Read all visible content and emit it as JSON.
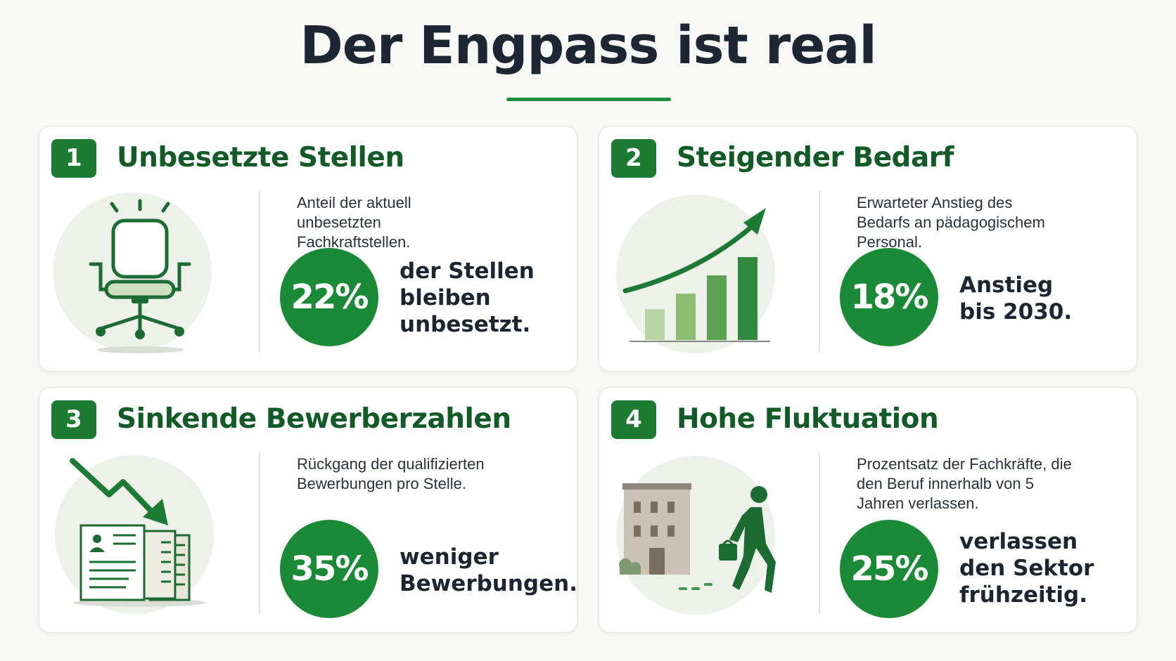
{
  "page": {
    "title": "Der Engpass ist real"
  },
  "colors": {
    "accent": "#1b8a37",
    "title_green": "#125a27",
    "badge": "#1d7a32",
    "circle_bg": "#eef1ea"
  },
  "cards": [
    {
      "number": "1",
      "title": "Unbesetzte Stellen",
      "icon": "office-chair-icon",
      "description": "Anteil der aktuell unbesetzten Fachkraftstellen.",
      "stat": "22%",
      "caption": "der Stellen bleiben unbesetzt."
    },
    {
      "number": "2",
      "title": "Steigender Bedarf",
      "icon": "rising-bar-chart-icon",
      "description": "Erwarteter Anstieg des Bedarfs an pädagogischem Personal.",
      "stat": "18%",
      "caption": "Anstieg bis 2030."
    },
    {
      "number": "3",
      "title": "Sinkende Bewerberzahlen",
      "icon": "declining-applications-icon",
      "description": "Rückgang der qualifizierten Bewerbungen pro Stelle.",
      "stat": "35%",
      "caption": "weniger Bewerbungen."
    },
    {
      "number": "4",
      "title": "Hohe Fluktuation",
      "icon": "person-leaving-building-icon",
      "description": "Prozentsatz der Fachkräfte, die den Beruf innerhalb von 5 Jahren verlassen.",
      "stat": "25%",
      "caption": "verlassen den Sektor frühzeitig."
    }
  ]
}
